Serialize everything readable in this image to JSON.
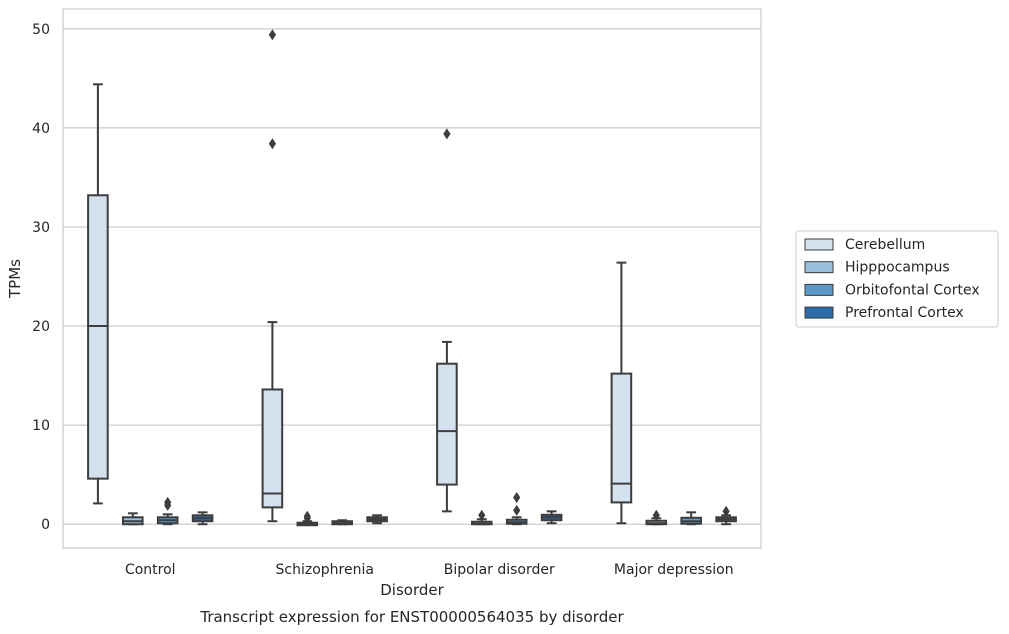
{
  "chart_data": {
    "type": "boxplot",
    "xlabel": "Disorder",
    "ylabel": "TPMs",
    "caption": "Transcript expression for ENST00000564035 by disorder",
    "ylim": [
      -2.4,
      52
    ],
    "yticks": [
      0,
      10,
      20,
      30,
      40,
      50
    ],
    "grid": "horizontal",
    "legend_position": "right",
    "categories": [
      "Control",
      "Schizophrenia",
      "Bipolar disorder",
      "Major depression"
    ],
    "series": [
      {
        "name": "Cerebellum",
        "color": "#d4e2f0",
        "boxes": [
          {
            "whisker_low": 2.1,
            "q1": 4.6,
            "median": 20.0,
            "q3": 33.2,
            "whisker_high": 44.4,
            "outliers": []
          },
          {
            "whisker_low": 0.3,
            "q1": 1.7,
            "median": 3.1,
            "q3": 13.6,
            "whisker_high": 20.4,
            "outliers": [
              38.4,
              49.4
            ]
          },
          {
            "whisker_low": 1.3,
            "q1": 4.0,
            "median": 9.4,
            "q3": 16.2,
            "whisker_high": 18.4,
            "outliers": [
              39.4
            ]
          },
          {
            "whisker_low": 0.1,
            "q1": 2.2,
            "median": 4.1,
            "q3": 15.2,
            "whisker_high": 26.4,
            "outliers": []
          }
        ]
      },
      {
        "name": "Hipppocampus",
        "color": "#9ac0dc",
        "boxes": [
          {
            "whisker_low": 0.0,
            "q1": 0.0,
            "median": 0.3,
            "q3": 0.7,
            "whisker_high": 1.1,
            "outliers": []
          },
          {
            "whisker_low": 0.0,
            "q1": 0.0,
            "median": 0.05,
            "q3": 0.15,
            "whisker_high": 0.3,
            "outliers": [
              0.6,
              0.8
            ]
          },
          {
            "whisker_low": 0.0,
            "q1": 0.0,
            "median": 0.05,
            "q3": 0.25,
            "whisker_high": 0.5,
            "outliers": [
              0.9
            ]
          },
          {
            "whisker_low": 0.0,
            "q1": 0.0,
            "median": 0.1,
            "q3": 0.35,
            "whisker_high": 0.6,
            "outliers": [
              0.9
            ]
          }
        ]
      },
      {
        "name": "Orbitofontal Cortex",
        "color": "#5b9ac8",
        "boxes": [
          {
            "whisker_low": 0.0,
            "q1": 0.1,
            "median": 0.4,
            "q3": 0.7,
            "whisker_high": 1.0,
            "outliers": [
              1.9,
              2.2
            ]
          },
          {
            "whisker_low": 0.0,
            "q1": 0.0,
            "median": 0.1,
            "q3": 0.3,
            "whisker_high": 0.4,
            "outliers": []
          },
          {
            "whisker_low": 0.0,
            "q1": 0.05,
            "median": 0.2,
            "q3": 0.45,
            "whisker_high": 0.7,
            "outliers": [
              1.4,
              2.7
            ]
          },
          {
            "whisker_low": 0.0,
            "q1": 0.05,
            "median": 0.3,
            "q3": 0.65,
            "whisker_high": 1.2,
            "outliers": []
          }
        ]
      },
      {
        "name": "Prefrontal Cortex",
        "color": "#2c6aa8",
        "boxes": [
          {
            "whisker_low": 0.0,
            "q1": 0.3,
            "median": 0.6,
            "q3": 0.9,
            "whisker_high": 1.2,
            "outliers": []
          },
          {
            "whisker_low": 0.1,
            "q1": 0.3,
            "median": 0.5,
            "q3": 0.7,
            "whisker_high": 0.9,
            "outliers": []
          },
          {
            "whisker_low": 0.1,
            "q1": 0.4,
            "median": 0.7,
            "q3": 0.95,
            "whisker_high": 1.3,
            "outliers": []
          },
          {
            "whisker_low": 0.0,
            "q1": 0.3,
            "median": 0.5,
            "q3": 0.7,
            "whisker_high": 0.9,
            "outliers": [
              1.3
            ]
          }
        ]
      }
    ]
  }
}
